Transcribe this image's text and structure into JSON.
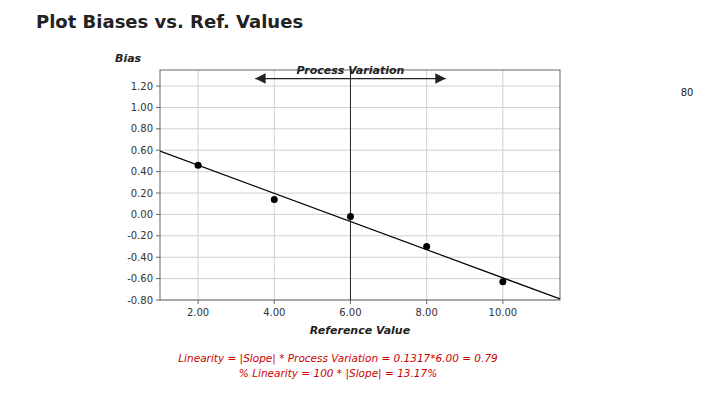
{
  "chart_data": {
    "type": "scatter",
    "title": "Plot Biases vs. Ref. Values",
    "x_label": "Reference Value",
    "y_label": "Bias",
    "xlim": [
      1.0,
      11.5
    ],
    "ylim": [
      -0.8,
      1.35
    ],
    "xticks": [
      {
        "value": 2.0,
        "label": "2.00"
      },
      {
        "value": 4.0,
        "label": "4.00"
      },
      {
        "value": 6.0,
        "label": "6.00"
      },
      {
        "value": 8.0,
        "label": "8.00"
      },
      {
        "value": 10.0,
        "label": "10.00"
      }
    ],
    "yticks": [
      {
        "value": -0.8,
        "label": "-0.80"
      },
      {
        "value": -0.6,
        "label": "-0.60"
      },
      {
        "value": -0.4,
        "label": "-0.40"
      },
      {
        "value": -0.2,
        "label": "-0.20"
      },
      {
        "value": 0.0,
        "label": "0.00"
      },
      {
        "value": 0.2,
        "label": "0.20"
      },
      {
        "value": 0.4,
        "label": "0.40"
      },
      {
        "value": 0.6,
        "label": "0.60"
      },
      {
        "value": 0.8,
        "label": "0.80"
      },
      {
        "value": 1.0,
        "label": "1.00"
      },
      {
        "value": 1.2,
        "label": "1.20"
      }
    ],
    "grid": true,
    "series": [
      {
        "type": "scatter",
        "x": [
          2.0,
          4.0,
          6.0,
          8.0,
          10.0
        ],
        "values": [
          0.46,
          0.14,
          -0.02,
          -0.3,
          -0.63
        ],
        "color": "black"
      },
      {
        "type": "line",
        "x": [
          1.0,
          11.5
        ],
        "values": [
          0.5923,
          -0.79055
        ],
        "color": "black"
      }
    ],
    "vline": 6.0,
    "arrow": {
      "start": 3.5,
      "end": 8.5,
      "y": 1.27,
      "label": "Process Variation"
    },
    "annotations": [
      {
        "text": "Linearity = |Slope| * Process Variation = 0.1317*6.00 = 0.79",
        "color": "#cc0000"
      },
      {
        "text": "% Linearity = 100 * |Slope| = 13.17%",
        "color": "#cc0000"
      }
    ],
    "page_number": "80"
  }
}
